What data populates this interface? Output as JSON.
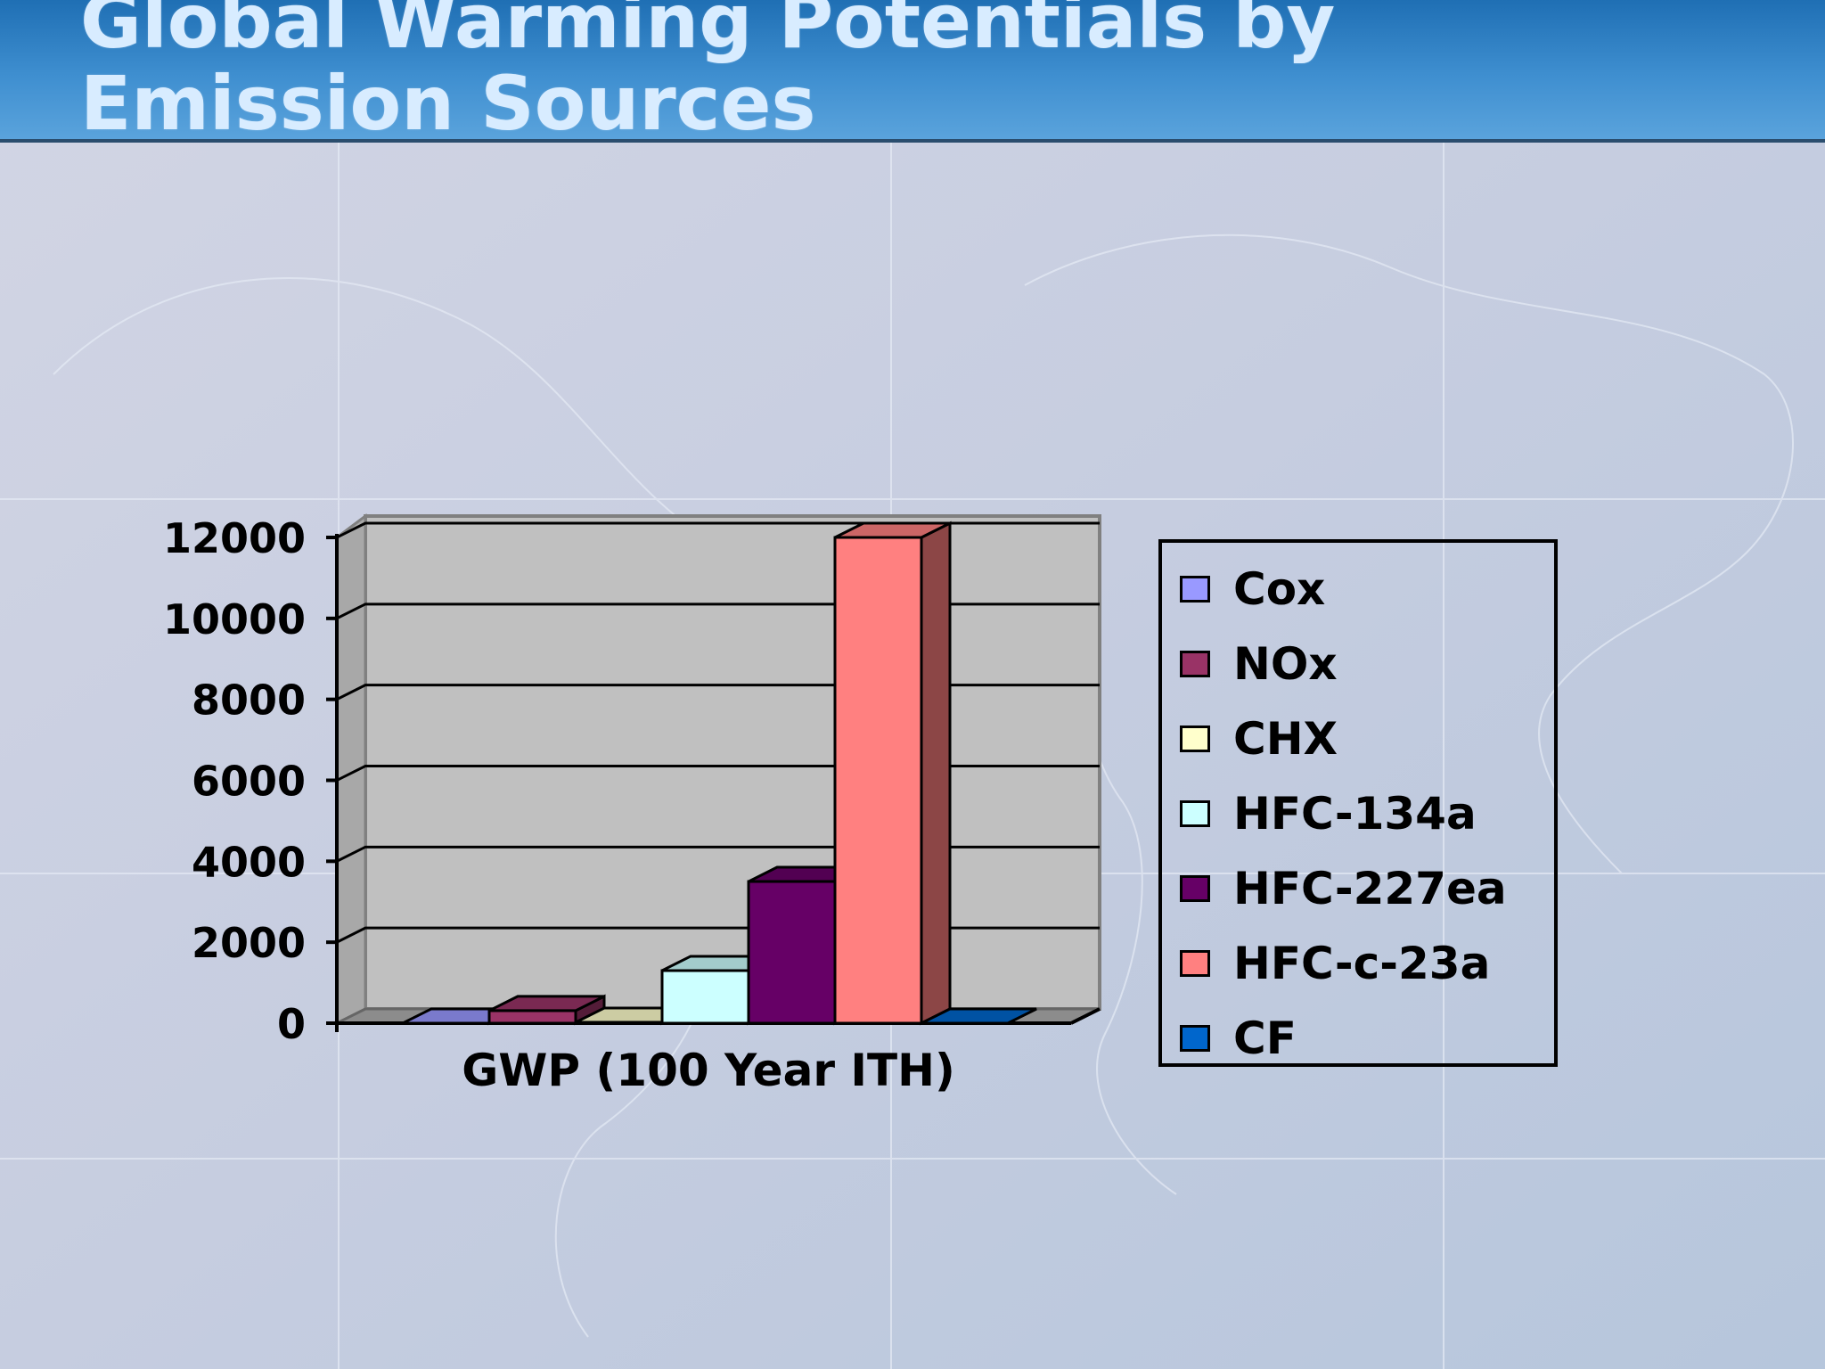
{
  "slide": {
    "title_line1": "Global Warming Potentials by",
    "title_line2": "Emission Sources"
  },
  "colors": {
    "header": "#2f80c4",
    "title_text": "#d8ecff",
    "plot_back": "#c0c0c0"
  },
  "chart_data": {
    "type": "bar",
    "style": "3d-clustered-column",
    "title": "",
    "xlabel": "",
    "ylabel": "",
    "categories": [
      "GWP (100 Year ITH)"
    ],
    "ylim": [
      0,
      12000
    ],
    "yticks": [
      "0",
      "2000",
      "4000",
      "6000",
      "8000",
      "10000",
      "12000"
    ],
    "grid": true,
    "legend_position": "right",
    "series": [
      {
        "name": "Cox",
        "values": [
          1
        ],
        "color": "#9999ff"
      },
      {
        "name": "NOx",
        "values": [
          310
        ],
        "color": "#993366"
      },
      {
        "name": "CHX",
        "values": [
          21
        ],
        "color": "#ffffcc"
      },
      {
        "name": "HFC-134a",
        "values": [
          1300
        ],
        "color": "#ccffff"
      },
      {
        "name": "HFC-227ea",
        "values": [
          3500
        ],
        "color": "#660066"
      },
      {
        "name": "HFC-c-23a",
        "values": [
          12000
        ],
        "color": "#ff8080"
      },
      {
        "name": "CF",
        "values": [
          0
        ],
        "color": "#0066cc"
      }
    ]
  }
}
